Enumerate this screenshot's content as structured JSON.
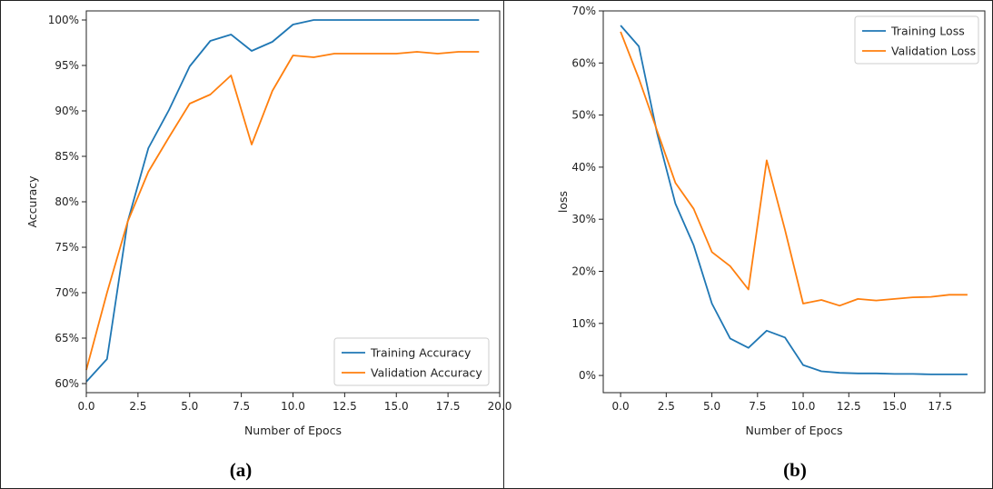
{
  "chart_data": [
    {
      "type": "line",
      "panel_label": "(a)",
      "xlabel": "Number of Epocs",
      "ylabel": "Accuracy",
      "xlim": [
        0,
        20
      ],
      "ylim": [
        0.59,
        1.01
      ],
      "x_ticks": [
        0,
        2.5,
        5,
        7.5,
        10,
        12.5,
        15,
        17.5,
        20
      ],
      "x_tick_labels": [
        "0.0",
        "2.5",
        "5.0",
        "7.5",
        "10.0",
        "12.5",
        "15.0",
        "17.5",
        "20.0"
      ],
      "y_ticks": [
        0.6,
        0.65,
        0.7,
        0.75,
        0.8,
        0.85,
        0.9,
        0.95,
        1.0
      ],
      "y_tick_labels": [
        "60%",
        "65%",
        "70%",
        "75%",
        "80%",
        "85%",
        "90%",
        "95%",
        "100%"
      ],
      "legend_position": "lower-right",
      "x": [
        0,
        1,
        2,
        3,
        4,
        5,
        6,
        7,
        8,
        9,
        10,
        11,
        12,
        13,
        14,
        15,
        16,
        17,
        18,
        19
      ],
      "series": [
        {
          "name": "Training Accuracy",
          "color": "#1f77b4",
          "values": [
            0.602,
            0.627,
            0.778,
            0.859,
            0.901,
            0.949,
            0.977,
            0.984,
            0.966,
            0.976,
            0.995,
            1.0,
            1.0,
            1.0,
            1.0,
            1.0,
            1.0,
            1.0,
            1.0,
            1.0
          ]
        },
        {
          "name": "Validation Accuracy",
          "color": "#ff7f0e",
          "values": [
            0.615,
            0.7,
            0.778,
            0.833,
            0.871,
            0.908,
            0.918,
            0.939,
            0.863,
            0.922,
            0.961,
            0.959,
            0.963,
            0.963,
            0.963,
            0.963,
            0.965,
            0.963,
            0.965,
            0.965
          ]
        }
      ]
    },
    {
      "type": "line",
      "panel_label": "(b)",
      "xlabel": "Number of Epocs",
      "ylabel": "loss",
      "xlim": [
        -0.95,
        19.95
      ],
      "ylim": [
        -0.033,
        0.7
      ],
      "x_ticks": [
        0,
        2.5,
        5,
        7.5,
        10,
        12.5,
        15,
        17.5
      ],
      "x_tick_labels": [
        "0.0",
        "2.5",
        "5.0",
        "7.5",
        "10.0",
        "12.5",
        "15.0",
        "17.5"
      ],
      "y_ticks": [
        0,
        0.1,
        0.2,
        0.3,
        0.4,
        0.5,
        0.6,
        0.7
      ],
      "y_tick_labels": [
        "0%",
        "10%",
        "20%",
        "30%",
        "40%",
        "50%",
        "60%",
        "70%"
      ],
      "legend_position": "upper-right",
      "x": [
        0,
        1,
        2,
        3,
        4,
        5,
        6,
        7,
        8,
        9,
        10,
        11,
        12,
        13,
        14,
        15,
        16,
        17,
        18,
        19
      ],
      "series": [
        {
          "name": "Training Loss",
          "color": "#1f77b4",
          "values": [
            0.672,
            0.632,
            0.465,
            0.33,
            0.25,
            0.138,
            0.071,
            0.053,
            0.086,
            0.073,
            0.02,
            0.008,
            0.005,
            0.004,
            0.004,
            0.003,
            0.003,
            0.002,
            0.002,
            0.002
          ]
        },
        {
          "name": "Validation Loss",
          "color": "#ff7f0e",
          "values": [
            0.66,
            0.57,
            0.47,
            0.37,
            0.32,
            0.237,
            0.21,
            0.165,
            0.413,
            0.28,
            0.138,
            0.145,
            0.134,
            0.147,
            0.144,
            0.147,
            0.15,
            0.151,
            0.155,
            0.155
          ]
        }
      ]
    }
  ]
}
